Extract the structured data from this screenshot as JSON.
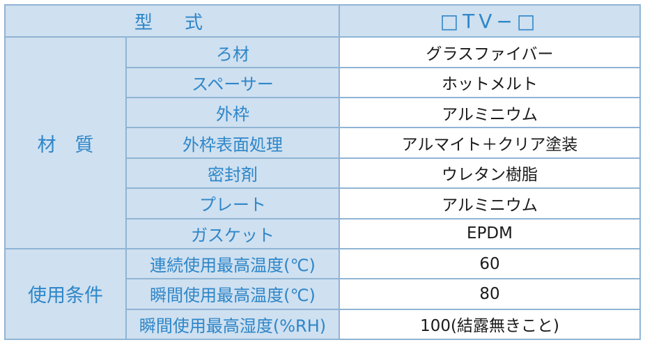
{
  "header": {
    "label": "型　式",
    "model": "□TV−□"
  },
  "materials": {
    "category": "材　質",
    "rows": [
      {
        "label": "ろ材",
        "value": "グラスファイバー"
      },
      {
        "label": "スペーサー",
        "value": "ホットメルト"
      },
      {
        "label": "外枠",
        "value": "アルミニウム"
      },
      {
        "label": "外枠表面処理",
        "value": "アルマイト＋クリア塗装"
      },
      {
        "label": "密封剤",
        "value": "ウレタン樹脂"
      },
      {
        "label": "プレート",
        "value": "アルミニウム"
      },
      {
        "label": "ガスケット",
        "value": "EPDM"
      }
    ]
  },
  "conditions": {
    "category": "使用条件",
    "rows": [
      {
        "label": "連続使用最高温度(℃)",
        "value": "60"
      },
      {
        "label": "瞬間使用最高温度(℃)",
        "value": "80"
      },
      {
        "label": "瞬間使用最高湿度(%RH)",
        "value": "100(結露無きこと)"
      }
    ]
  }
}
